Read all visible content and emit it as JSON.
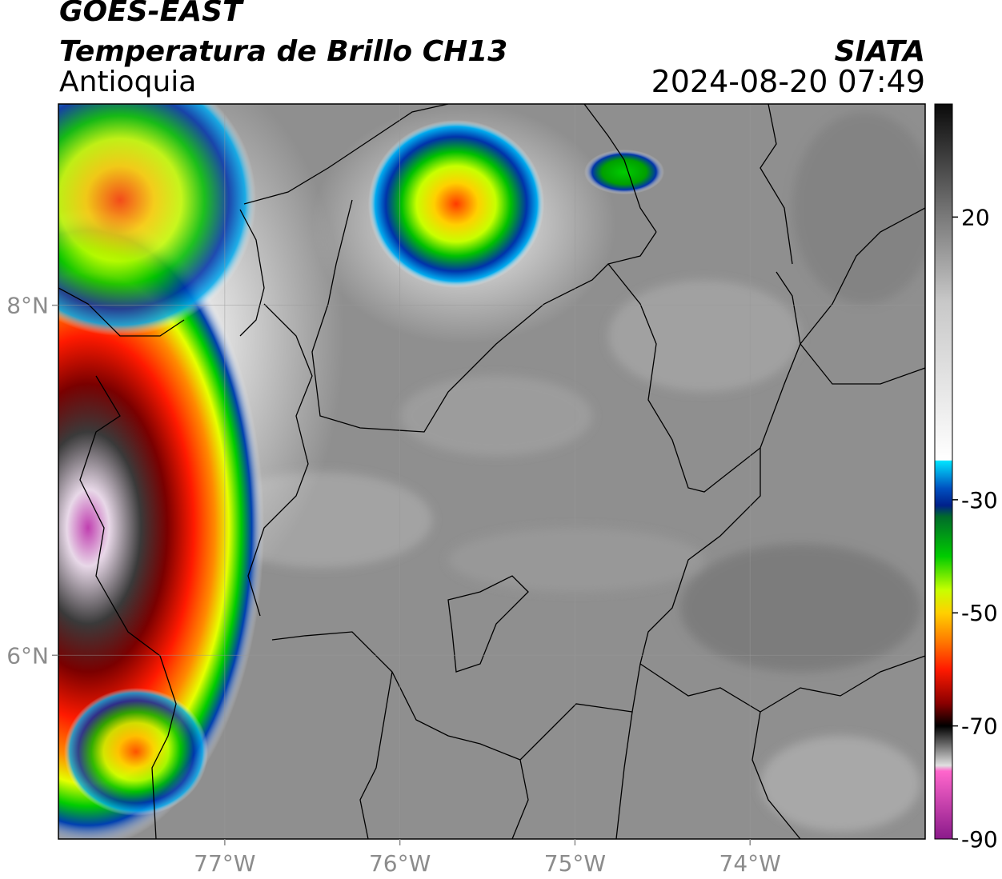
{
  "header": {
    "satellite": "GOES-EAST",
    "product": "Temperatura de Brillo CH13",
    "region": "Antioquia",
    "agency": "SIATA",
    "timestamp": "2024-08-20 07:49"
  },
  "map": {
    "lon_range": [
      -77.95,
      -73.0
    ],
    "lat_range": [
      4.95,
      9.15
    ],
    "lon_ticks": [
      {
        "value": -77,
        "label": "77°W"
      },
      {
        "value": -76,
        "label": "76°W"
      },
      {
        "value": -75,
        "label": "75°W"
      },
      {
        "value": -74,
        "label": "74°W"
      }
    ],
    "lat_ticks": [
      {
        "value": 8,
        "label": "8°N"
      },
      {
        "value": 6,
        "label": "6°N"
      }
    ],
    "background_color": "#8f8f8f",
    "cloud_features": [
      {
        "name": "coastal-convective-system",
        "cold_core_colors": [
          "#c03fb0",
          "#2a2a2a",
          "#c00000",
          "#ff2a00",
          "#ffe100",
          "#00c000",
          "#0033aa"
        ]
      },
      {
        "name": "northern-storm-cell",
        "cold_core_colors": [
          "#ff3a00",
          "#ffd000",
          "#00c000",
          "#0033aa"
        ]
      },
      {
        "name": "northeast-small-cell",
        "cold_core_colors": [
          "#00cc00",
          "#0033aa"
        ]
      }
    ]
  },
  "colorbar": {
    "ticks": [
      {
        "value": 20,
        "label": "20"
      },
      {
        "value": -30,
        "label": "-30"
      },
      {
        "value": -50,
        "label": "-50"
      },
      {
        "value": -70,
        "label": "-70"
      },
      {
        "value": -90,
        "label": "-90"
      }
    ],
    "range": [
      -90,
      40
    ],
    "stops": [
      {
        "value": 40,
        "color": "#0a0a0a"
      },
      {
        "value": 20,
        "color": "#7a7a7a"
      },
      {
        "value": 5,
        "color": "#c8c8c8"
      },
      {
        "value": -23,
        "color": "#ffffff"
      },
      {
        "value": -23.1,
        "color": "#00e5ff"
      },
      {
        "value": -28,
        "color": "#0050c0"
      },
      {
        "value": -31,
        "color": "#00208a"
      },
      {
        "value": -33,
        "color": "#006b2a"
      },
      {
        "value": -40,
        "color": "#00cc00"
      },
      {
        "value": -46,
        "color": "#c8ff00"
      },
      {
        "value": -50,
        "color": "#ffd000"
      },
      {
        "value": -55,
        "color": "#ff7a00"
      },
      {
        "value": -60,
        "color": "#ff1a00"
      },
      {
        "value": -66,
        "color": "#8a0000"
      },
      {
        "value": -70,
        "color": "#000000"
      },
      {
        "value": -77,
        "color": "#e0e0e0"
      },
      {
        "value": -78,
        "color": "#ff66cc"
      },
      {
        "value": -90,
        "color": "#8a1a8a"
      }
    ]
  }
}
